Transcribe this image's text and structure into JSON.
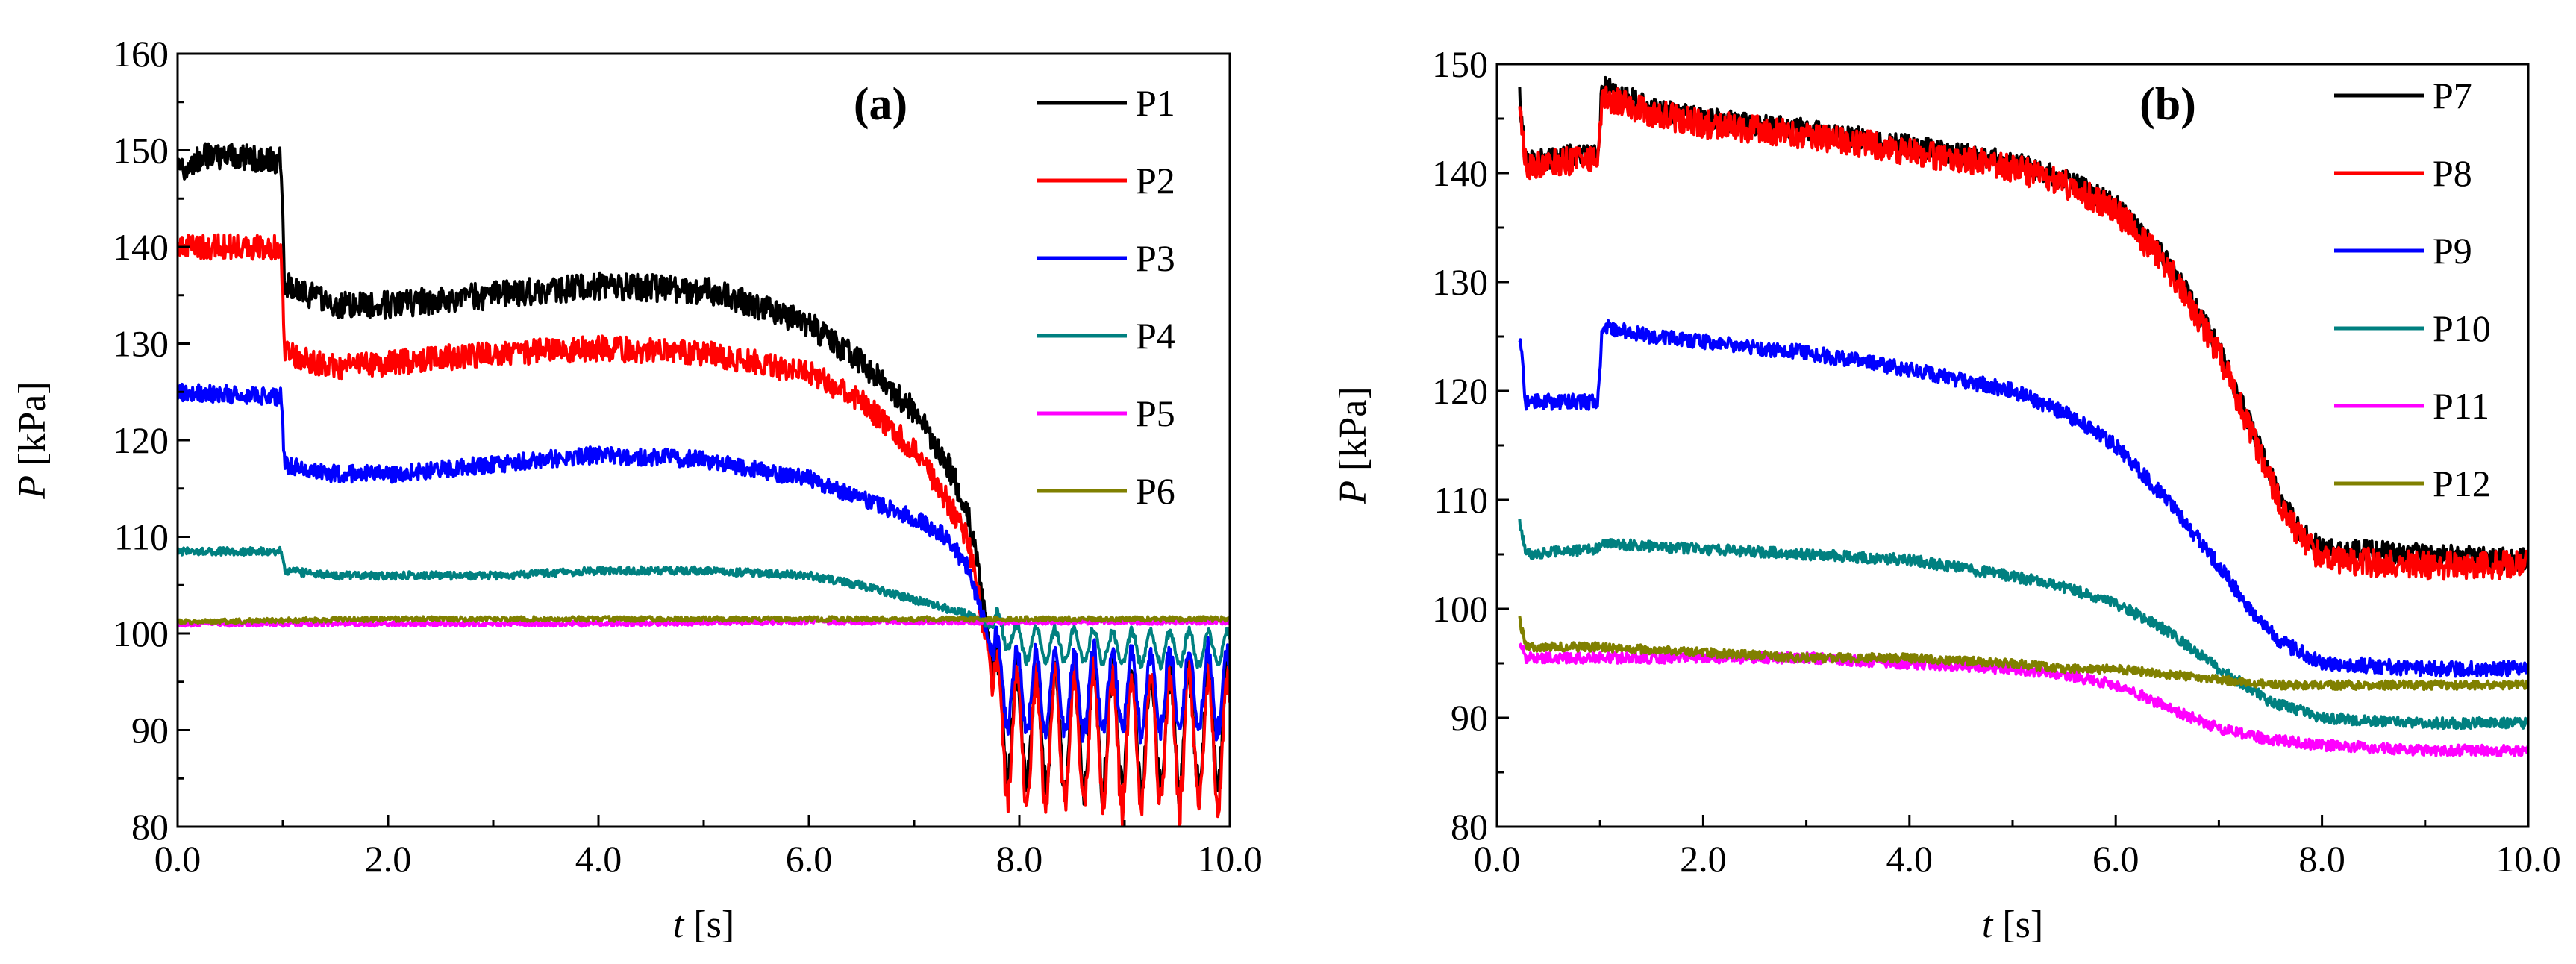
{
  "chart_data": [
    {
      "type": "line",
      "panel_label": "(a)",
      "xlabel_symbol": "t",
      "xlabel_unit": "[s]",
      "ylabel_symbol": "P",
      "ylabel_unit": "[kPa]",
      "xlim": [
        0,
        10
      ],
      "ylim": [
        80,
        160
      ],
      "xticks": [
        0,
        2,
        4,
        6,
        8,
        10
      ],
      "xtick_labels": [
        "0.0",
        "2.0",
        "4.0",
        "6.0",
        "8.0",
        "10.0"
      ],
      "yticks": [
        80,
        90,
        100,
        110,
        120,
        130,
        140,
        150,
        160
      ],
      "ytick_labels": [
        "80",
        "90",
        "100",
        "110",
        "120",
        "130",
        "140",
        "150",
        "160"
      ],
      "legend_position": "top-right",
      "series": [
        {
          "name": "P1",
          "color": "#000000",
          "noise": 1.4,
          "fall_osc": 7,
          "points": [
            [
              0,
              148
            ],
            [
              0.3,
              149.5
            ],
            [
              0.98,
              149
            ],
            [
              1.02,
              136
            ],
            [
              1.5,
              134
            ],
            [
              2,
              134
            ],
            [
              3,
              135
            ],
            [
              4,
              136
            ],
            [
              5,
              135.5
            ],
            [
              5.5,
              134
            ],
            [
              6,
              132
            ],
            [
              6.5,
              128
            ],
            [
              7,
              123
            ],
            [
              7.3,
              118
            ],
            [
              7.5,
              113
            ],
            [
              7.6,
              107
            ],
            [
              7.7,
              100
            ],
            [
              7.8,
              92
            ],
            [
              8,
              90
            ],
            [
              9,
              90
            ],
            [
              10,
              90
            ]
          ]
        },
        {
          "name": "P2",
          "color": "#ff0000",
          "noise": 1.3,
          "fall_osc": 8,
          "points": [
            [
              0,
              140
            ],
            [
              0.98,
              140
            ],
            [
              1.02,
              129
            ],
            [
              1.5,
              127.5
            ],
            [
              2,
              128
            ],
            [
              3,
              129
            ],
            [
              4,
              129.5
            ],
            [
              5,
              129
            ],
            [
              5.5,
              128
            ],
            [
              6,
              127
            ],
            [
              6.5,
              124
            ],
            [
              7,
              119
            ],
            [
              7.3,
              114
            ],
            [
              7.5,
              110
            ],
            [
              7.6,
              105
            ],
            [
              7.7,
              98
            ],
            [
              7.8,
              90
            ],
            [
              8,
              89
            ],
            [
              9,
              89
            ],
            [
              10,
              89
            ]
          ]
        },
        {
          "name": "P3",
          "color": "#0000ff",
          "noise": 0.9,
          "fall_osc": 5,
          "points": [
            [
              0,
              125
            ],
            [
              0.98,
              124.5
            ],
            [
              1.02,
              117.5
            ],
            [
              1.5,
              116.5
            ],
            [
              2,
              116.5
            ],
            [
              3,
              117.5
            ],
            [
              4,
              118.5
            ],
            [
              5,
              118
            ],
            [
              5.5,
              117
            ],
            [
              6,
              116
            ],
            [
              6.5,
              114
            ],
            [
              7,
              112
            ],
            [
              7.3,
              110
            ],
            [
              7.5,
              107
            ],
            [
              7.7,
              100
            ],
            [
              7.8,
              95
            ],
            [
              8,
              94
            ],
            [
              9,
              94
            ],
            [
              10,
              94
            ]
          ]
        },
        {
          "name": "P4",
          "color": "#008080",
          "noise": 0.4,
          "fall_osc": 2,
          "points": [
            [
              0,
              108.5
            ],
            [
              0.98,
              108.5
            ],
            [
              1.02,
              106.5
            ],
            [
              1.5,
              106
            ],
            [
              2,
              106
            ],
            [
              3,
              106
            ],
            [
              4,
              106.5
            ],
            [
              5,
              106.5
            ],
            [
              6,
              106
            ],
            [
              6.5,
              105
            ],
            [
              7,
              103.5
            ],
            [
              7.5,
              102
            ],
            [
              7.7,
              101
            ],
            [
              7.9,
              100
            ],
            [
              8,
              99
            ],
            [
              9,
              98.5
            ],
            [
              10,
              98.5
            ]
          ]
        },
        {
          "name": "P5",
          "color": "#ff00ff",
          "noise": 0.25,
          "fall_osc": 0,
          "points": [
            [
              0,
              101
            ],
            [
              2,
              101
            ],
            [
              4,
              101
            ],
            [
              6,
              101.2
            ],
            [
              7,
              101.2
            ],
            [
              8,
              101.2
            ],
            [
              10,
              101.2
            ]
          ]
        },
        {
          "name": "P6",
          "color": "#808000",
          "noise": 0.25,
          "fall_osc": 0,
          "points": [
            [
              0,
              101.2
            ],
            [
              2,
              101.5
            ],
            [
              4,
              101.5
            ],
            [
              6,
              101.5
            ],
            [
              7,
              101.5
            ],
            [
              8,
              101.5
            ],
            [
              10,
              101.5
            ]
          ]
        }
      ]
    },
    {
      "type": "line",
      "panel_label": "(b)",
      "xlabel_symbol": "t",
      "xlabel_unit": "[s]",
      "ylabel_symbol": "P",
      "ylabel_unit": "[kPa]",
      "xlim": [
        0,
        10
      ],
      "ylim": [
        80,
        150
      ],
      "xticks": [
        0,
        2,
        4,
        6,
        8,
        10
      ],
      "xtick_labels": [
        "0.0",
        "2.0",
        "4.0",
        "6.0",
        "8.0",
        "10.0"
      ],
      "yticks": [
        80,
        90,
        100,
        110,
        120,
        130,
        140,
        150
      ],
      "ytick_labels": [
        "80",
        "90",
        "100",
        "110",
        "120",
        "130",
        "140",
        "150"
      ],
      "legend_position": "top-right",
      "series": [
        {
          "name": "P7",
          "color": "#000000",
          "noise": 1.0,
          "fall_osc": 0,
          "points": [
            [
              0.22,
              147
            ],
            [
              0.28,
              141
            ],
            [
              0.6,
              141.5
            ],
            [
              0.98,
              142
            ],
            [
              1.02,
              148
            ],
            [
              1.5,
              146
            ],
            [
              2,
              145
            ],
            [
              3,
              144
            ],
            [
              4,
              142.5
            ],
            [
              5,
              141
            ],
            [
              5.5,
              139.5
            ],
            [
              6,
              137
            ],
            [
              6.5,
              132
            ],
            [
              7,
              124
            ],
            [
              7.3,
              117
            ],
            [
              7.6,
              110
            ],
            [
              7.8,
              107
            ],
            [
              8,
              105.5
            ],
            [
              9,
              105
            ],
            [
              10,
              104.5
            ]
          ]
        },
        {
          "name": "P8",
          "color": "#ff0000",
          "noise": 1.3,
          "fall_osc": 0,
          "points": [
            [
              0.22,
              146
            ],
            [
              0.28,
              140.5
            ],
            [
              0.6,
              141
            ],
            [
              0.98,
              141.5
            ],
            [
              1.02,
              147
            ],
            [
              1.5,
              145.5
            ],
            [
              2,
              144.5
            ],
            [
              3,
              143.5
            ],
            [
              4,
              142
            ],
            [
              5,
              140.5
            ],
            [
              5.5,
              139
            ],
            [
              6,
              136.5
            ],
            [
              6.5,
              131.5
            ],
            [
              7,
              123.5
            ],
            [
              7.3,
              116.5
            ],
            [
              7.6,
              109.5
            ],
            [
              7.8,
              106.5
            ],
            [
              8,
              104.5
            ],
            [
              9,
              104
            ],
            [
              10,
              104
            ]
          ]
        },
        {
          "name": "P9",
          "color": "#0000ff",
          "noise": 0.7,
          "fall_osc": 0,
          "points": [
            [
              0.22,
              125
            ],
            [
              0.28,
              119
            ],
            [
              0.98,
              119
            ],
            [
              1.02,
              126
            ],
            [
              1.5,
              125
            ],
            [
              2,
              124.5
            ],
            [
              3,
              123.5
            ],
            [
              4,
              122
            ],
            [
              5,
              120
            ],
            [
              5.5,
              118
            ],
            [
              6,
              115
            ],
            [
              6.5,
              110
            ],
            [
              7,
              104
            ],
            [
              7.3,
              100
            ],
            [
              7.6,
              97
            ],
            [
              8,
              95
            ],
            [
              9,
              94.5
            ],
            [
              10,
              94.5
            ]
          ]
        },
        {
          "name": "P10",
          "color": "#008080",
          "noise": 0.5,
          "fall_osc": 0,
          "points": [
            [
              0.22,
              108
            ],
            [
              0.28,
              105
            ],
            [
              0.98,
              105.5
            ],
            [
              1.02,
              106
            ],
            [
              2,
              105.5
            ],
            [
              3,
              105
            ],
            [
              4,
              104.5
            ],
            [
              5,
              103
            ],
            [
              5.5,
              102
            ],
            [
              6,
              100.5
            ],
            [
              6.5,
              98
            ],
            [
              7,
              94.5
            ],
            [
              7.5,
              91.5
            ],
            [
              8,
              90
            ],
            [
              9,
              89.5
            ],
            [
              10,
              89.5
            ]
          ]
        },
        {
          "name": "P11",
          "color": "#ff00ff",
          "noise": 0.5,
          "fall_osc": 0,
          "points": [
            [
              0.22,
              97
            ],
            [
              0.28,
              95.5
            ],
            [
              1,
              95.5
            ],
            [
              2,
              95.5
            ],
            [
              3,
              95.5
            ],
            [
              4,
              95
            ],
            [
              5,
              94.5
            ],
            [
              5.5,
              94
            ],
            [
              6,
              93
            ],
            [
              6.5,
              91
            ],
            [
              7,
              89
            ],
            [
              7.5,
              88
            ],
            [
              8,
              87.5
            ],
            [
              9,
              87
            ],
            [
              10,
              87
            ]
          ]
        },
        {
          "name": "P12",
          "color": "#808000",
          "noise": 0.4,
          "fall_osc": 0,
          "points": [
            [
              0.22,
              99
            ],
            [
              0.28,
              96.5
            ],
            [
              1,
              96.5
            ],
            [
              2,
              96
            ],
            [
              3,
              95.5
            ],
            [
              4,
              95.5
            ],
            [
              5,
              95
            ],
            [
              5.5,
              94.5
            ],
            [
              6,
              94.5
            ],
            [
              6.5,
              94
            ],
            [
              7,
              93.5
            ],
            [
              7.5,
              93
            ],
            [
              8,
              93
            ],
            [
              9,
              93
            ],
            [
              10,
              93
            ]
          ]
        }
      ]
    }
  ]
}
